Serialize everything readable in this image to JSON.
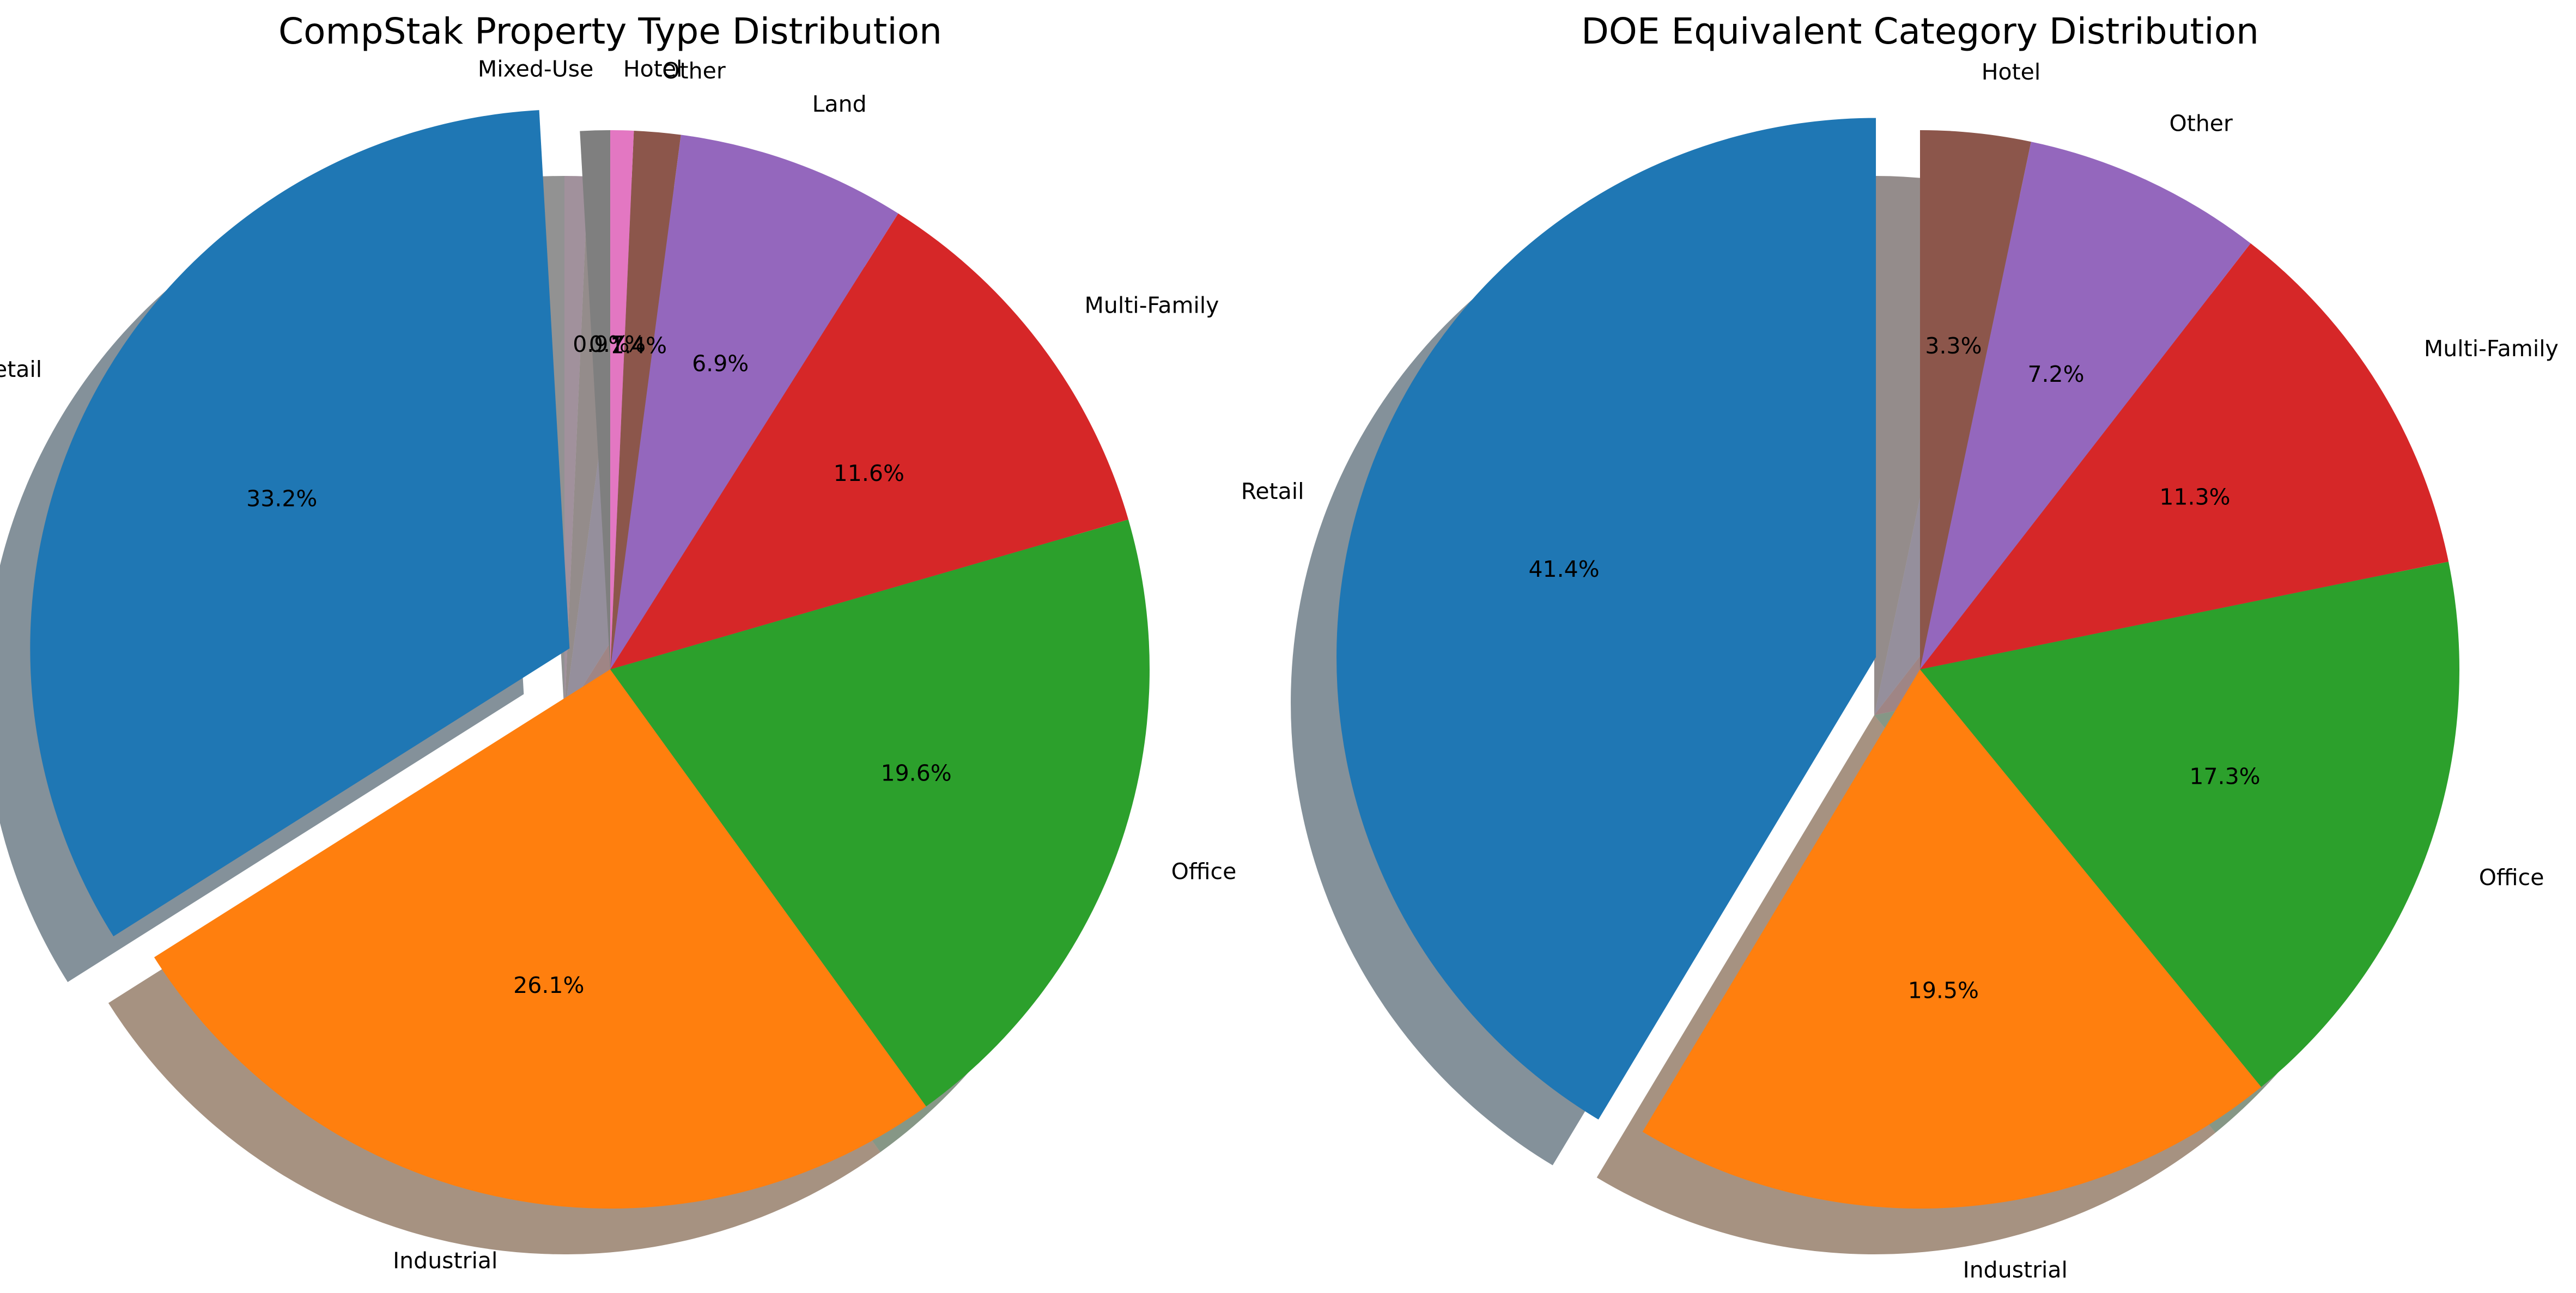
{
  "chart_data": [
    {
      "type": "pie",
      "title": "CompStak Property Type Distribution",
      "start_angle": 90,
      "direction": "counterclockwise",
      "shadow": true,
      "categories": [
        "Mixed-Use",
        "Retail",
        "Industrial",
        "Office",
        "Multi-Family",
        "Land",
        "Other",
        "Hotel"
      ],
      "values": [
        0.9,
        33.2,
        26.1,
        19.6,
        11.6,
        6.9,
        1.4,
        0.7
      ],
      "value_labels": [
        "0.9%",
        "33.2%",
        "26.1%",
        "19.6%",
        "11.6%",
        "6.9%",
        "1.4%",
        "0.7%"
      ],
      "colors": [
        "#7f7f7f",
        "#1f77b4",
        "#ff7f0e",
        "#2ca02c",
        "#d62728",
        "#9467bd",
        "#8c564b",
        "#e377c2"
      ]
    },
    {
      "type": "pie",
      "title": "DOE Equivalent Category Distribution",
      "start_angle": 90,
      "direction": "counterclockwise",
      "shadow": true,
      "categories": [
        "Retail",
        "Industrial",
        "Office",
        "Multi-Family",
        "Other",
        "Hotel"
      ],
      "values": [
        41.4,
        19.5,
        17.3,
        11.3,
        7.2,
        3.3
      ],
      "value_labels": [
        "41.4%",
        "19.5%",
        "17.3%",
        "11.3%",
        "7.2%",
        "3.3%"
      ],
      "colors": [
        "#1f77b4",
        "#ff7f0e",
        "#2ca02c",
        "#d62728",
        "#9467bd",
        "#8c564b"
      ]
    }
  ]
}
